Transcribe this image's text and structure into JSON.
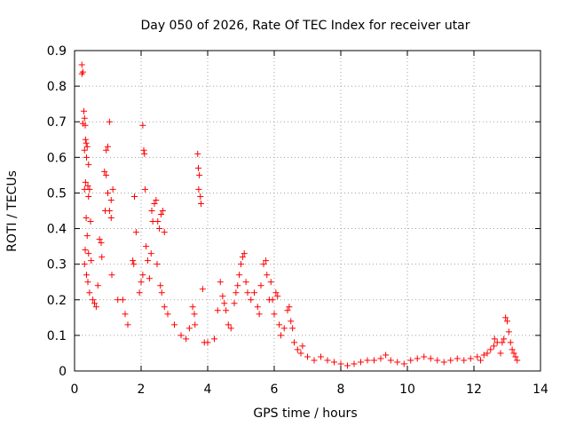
{
  "chart_data": {
    "type": "scatter",
    "title": "Day 050 of 2026, Rate Of TEC Index for receiver utar",
    "xlabel": "GPS time / hours",
    "ylabel": "ROTI / TECUs",
    "xlim": [
      0,
      14
    ],
    "ylim": [
      0,
      0.9
    ],
    "xticks": [
      0,
      2,
      4,
      6,
      8,
      10,
      12,
      14
    ],
    "xtick_labels": [
      "0",
      "2",
      "4",
      "6",
      "8",
      "10",
      "12",
      "14"
    ],
    "yticks": [
      0,
      0.1,
      0.2,
      0.3,
      0.4,
      0.5,
      0.6,
      0.7,
      0.8,
      0.9
    ],
    "ytick_labels": [
      "0",
      "0.1",
      "0.2",
      "0.3",
      "0.4",
      "0.5",
      "0.6",
      "0.7",
      "0.8",
      "0.9"
    ],
    "grid": true,
    "marker": "+",
    "marker_color": "#ff0000",
    "series": [
      {
        "name": "ROTI",
        "points": [
          [
            0.22,
            0.86
          ],
          [
            0.22,
            0.835
          ],
          [
            0.25,
            0.84
          ],
          [
            0.28,
            0.73
          ],
          [
            0.3,
            0.71
          ],
          [
            0.32,
            0.69
          ],
          [
            0.25,
            0.695
          ],
          [
            0.33,
            0.65
          ],
          [
            0.35,
            0.64
          ],
          [
            0.3,
            0.62
          ],
          [
            0.38,
            0.63
          ],
          [
            0.36,
            0.6
          ],
          [
            0.42,
            0.58
          ],
          [
            0.33,
            0.53
          ],
          [
            0.4,
            0.52
          ],
          [
            0.45,
            0.51
          ],
          [
            0.3,
            0.51
          ],
          [
            0.42,
            0.49
          ],
          [
            0.35,
            0.43
          ],
          [
            0.48,
            0.42
          ],
          [
            0.38,
            0.38
          ],
          [
            0.32,
            0.34
          ],
          [
            0.42,
            0.33
          ],
          [
            0.3,
            0.3
          ],
          [
            0.5,
            0.31
          ],
          [
            0.36,
            0.27
          ],
          [
            0.4,
            0.25
          ],
          [
            0.45,
            0.22
          ],
          [
            0.55,
            0.2
          ],
          [
            0.6,
            0.19
          ],
          [
            0.65,
            0.18
          ],
          [
            0.7,
            0.24
          ],
          [
            0.75,
            0.37
          ],
          [
            0.8,
            0.36
          ],
          [
            0.82,
            0.32
          ],
          [
            0.9,
            0.56
          ],
          [
            0.95,
            0.55
          ],
          [
            0.95,
            0.62
          ],
          [
            1.0,
            0.63
          ],
          [
            1.05,
            0.7
          ],
          [
            1.0,
            0.5
          ],
          [
            1.05,
            0.45
          ],
          [
            1.1,
            0.48
          ],
          [
            1.1,
            0.43
          ],
          [
            1.15,
            0.51
          ],
          [
            0.92,
            0.45
          ],
          [
            1.12,
            0.27
          ],
          [
            1.3,
            0.2
          ],
          [
            1.45,
            0.2
          ],
          [
            1.52,
            0.16
          ],
          [
            1.6,
            0.13
          ],
          [
            1.75,
            0.31
          ],
          [
            1.78,
            0.3
          ],
          [
            1.8,
            0.49
          ],
          [
            1.85,
            0.39
          ],
          [
            1.95,
            0.22
          ],
          [
            2.0,
            0.25
          ],
          [
            2.05,
            0.27
          ],
          [
            2.05,
            0.69
          ],
          [
            2.08,
            0.62
          ],
          [
            2.1,
            0.61
          ],
          [
            2.12,
            0.51
          ],
          [
            2.15,
            0.35
          ],
          [
            2.2,
            0.31
          ],
          [
            2.25,
            0.26
          ],
          [
            2.32,
            0.45
          ],
          [
            2.35,
            0.42
          ],
          [
            2.4,
            0.47
          ],
          [
            2.45,
            0.48
          ],
          [
            2.5,
            0.42
          ],
          [
            2.55,
            0.4
          ],
          [
            2.6,
            0.44
          ],
          [
            2.65,
            0.45
          ],
          [
            2.7,
            0.39
          ],
          [
            2.3,
            0.33
          ],
          [
            2.48,
            0.3
          ],
          [
            2.58,
            0.24
          ],
          [
            2.62,
            0.22
          ],
          [
            2.7,
            0.18
          ],
          [
            2.8,
            0.16
          ],
          [
            3.0,
            0.13
          ],
          [
            3.2,
            0.1
          ],
          [
            3.35,
            0.09
          ],
          [
            3.45,
            0.12
          ],
          [
            3.55,
            0.18
          ],
          [
            3.6,
            0.16
          ],
          [
            3.62,
            0.13
          ],
          [
            3.7,
            0.61
          ],
          [
            3.72,
            0.57
          ],
          [
            3.75,
            0.55
          ],
          [
            3.73,
            0.51
          ],
          [
            3.78,
            0.49
          ],
          [
            3.8,
            0.47
          ],
          [
            3.85,
            0.23
          ],
          [
            3.9,
            0.08
          ],
          [
            4.0,
            0.08
          ],
          [
            4.2,
            0.09
          ],
          [
            4.3,
            0.17
          ],
          [
            4.38,
            0.25
          ],
          [
            4.45,
            0.21
          ],
          [
            4.5,
            0.19
          ],
          [
            4.55,
            0.17
          ],
          [
            4.62,
            0.13
          ],
          [
            4.7,
            0.12
          ],
          [
            4.8,
            0.19
          ],
          [
            4.85,
            0.22
          ],
          [
            4.9,
            0.24
          ],
          [
            4.95,
            0.27
          ],
          [
            5.0,
            0.3
          ],
          [
            5.05,
            0.32
          ],
          [
            5.1,
            0.33
          ],
          [
            5.15,
            0.25
          ],
          [
            5.2,
            0.22
          ],
          [
            5.3,
            0.2
          ],
          [
            5.4,
            0.22
          ],
          [
            5.5,
            0.18
          ],
          [
            5.55,
            0.16
          ],
          [
            5.6,
            0.24
          ],
          [
            5.68,
            0.3
          ],
          [
            5.75,
            0.31
          ],
          [
            5.78,
            0.27
          ],
          [
            5.85,
            0.2
          ],
          [
            5.9,
            0.25
          ],
          [
            5.95,
            0.2
          ],
          [
            6.0,
            0.16
          ],
          [
            6.05,
            0.22
          ],
          [
            6.1,
            0.21
          ],
          [
            6.15,
            0.13
          ],
          [
            6.2,
            0.1
          ],
          [
            6.3,
            0.12
          ],
          [
            6.4,
            0.17
          ],
          [
            6.45,
            0.18
          ],
          [
            6.5,
            0.14
          ],
          [
            6.55,
            0.12
          ],
          [
            6.6,
            0.08
          ],
          [
            6.7,
            0.06
          ],
          [
            6.8,
            0.05
          ],
          [
            6.85,
            0.07
          ],
          [
            7.0,
            0.04
          ],
          [
            7.2,
            0.03
          ],
          [
            7.4,
            0.04
          ],
          [
            7.6,
            0.03
          ],
          [
            7.8,
            0.025
          ],
          [
            8.0,
            0.02
          ],
          [
            8.2,
            0.015
          ],
          [
            8.4,
            0.02
          ],
          [
            8.6,
            0.025
          ],
          [
            8.8,
            0.03
          ],
          [
            9.0,
            0.03
          ],
          [
            9.2,
            0.035
          ],
          [
            9.35,
            0.045
          ],
          [
            9.5,
            0.03
          ],
          [
            9.7,
            0.025
          ],
          [
            9.9,
            0.02
          ],
          [
            10.1,
            0.03
          ],
          [
            10.3,
            0.035
          ],
          [
            10.5,
            0.04
          ],
          [
            10.7,
            0.035
          ],
          [
            10.9,
            0.03
          ],
          [
            11.1,
            0.025
          ],
          [
            11.3,
            0.03
          ],
          [
            11.5,
            0.035
          ],
          [
            11.7,
            0.03
          ],
          [
            11.9,
            0.035
          ],
          [
            12.1,
            0.04
          ],
          [
            12.2,
            0.03
          ],
          [
            12.3,
            0.045
          ],
          [
            12.4,
            0.05
          ],
          [
            12.5,
            0.06
          ],
          [
            12.6,
            0.07
          ],
          [
            12.62,
            0.09
          ],
          [
            12.7,
            0.08
          ],
          [
            12.8,
            0.05
          ],
          [
            12.85,
            0.08
          ],
          [
            12.9,
            0.09
          ],
          [
            12.95,
            0.15
          ],
          [
            13.0,
            0.14
          ],
          [
            13.05,
            0.11
          ],
          [
            13.1,
            0.08
          ],
          [
            13.15,
            0.06
          ],
          [
            13.2,
            0.05
          ],
          [
            13.25,
            0.04
          ],
          [
            13.3,
            0.03
          ]
        ]
      }
    ]
  }
}
